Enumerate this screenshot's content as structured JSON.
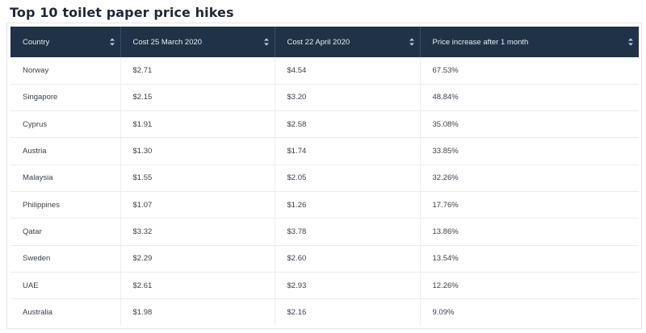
{
  "title": "Top 10 toilet paper price hikes",
  "table": {
    "columns": [
      "Country",
      "Cost 25 March 2020",
      "Cost 22 April 2020",
      "Price increase after 1 month"
    ],
    "rows": [
      [
        "Norway",
        "$2.71",
        "$4.54",
        "67.53%"
      ],
      [
        "Singapore",
        "$2.15",
        "$3.20",
        "48.84%"
      ],
      [
        "Cyprus",
        "$1.91",
        "$2.58",
        "35.08%"
      ],
      [
        "Austria",
        "$1.30",
        "$1.74",
        "33.85%"
      ],
      [
        "Malaysia",
        "$1.55",
        "$2.05",
        "32.26%"
      ],
      [
        "Philippines",
        "$1.07",
        "$1.26",
        "17.76%"
      ],
      [
        "Qatar",
        "$3.32",
        "$3.78",
        "13.86%"
      ],
      [
        "Sweden",
        "$2.29",
        "$2.60",
        "13.54%"
      ],
      [
        "UAE",
        "$2.61",
        "$2.93",
        "12.26%"
      ],
      [
        "Australia",
        "$1.98",
        "$2.16",
        "9.09%"
      ]
    ]
  },
  "icons": {
    "sort": "sort-arrows-icon"
  },
  "colors": {
    "header_bg": "#1f3247",
    "header_text": "#e7ecf2",
    "row_border": "#e9ebee"
  }
}
